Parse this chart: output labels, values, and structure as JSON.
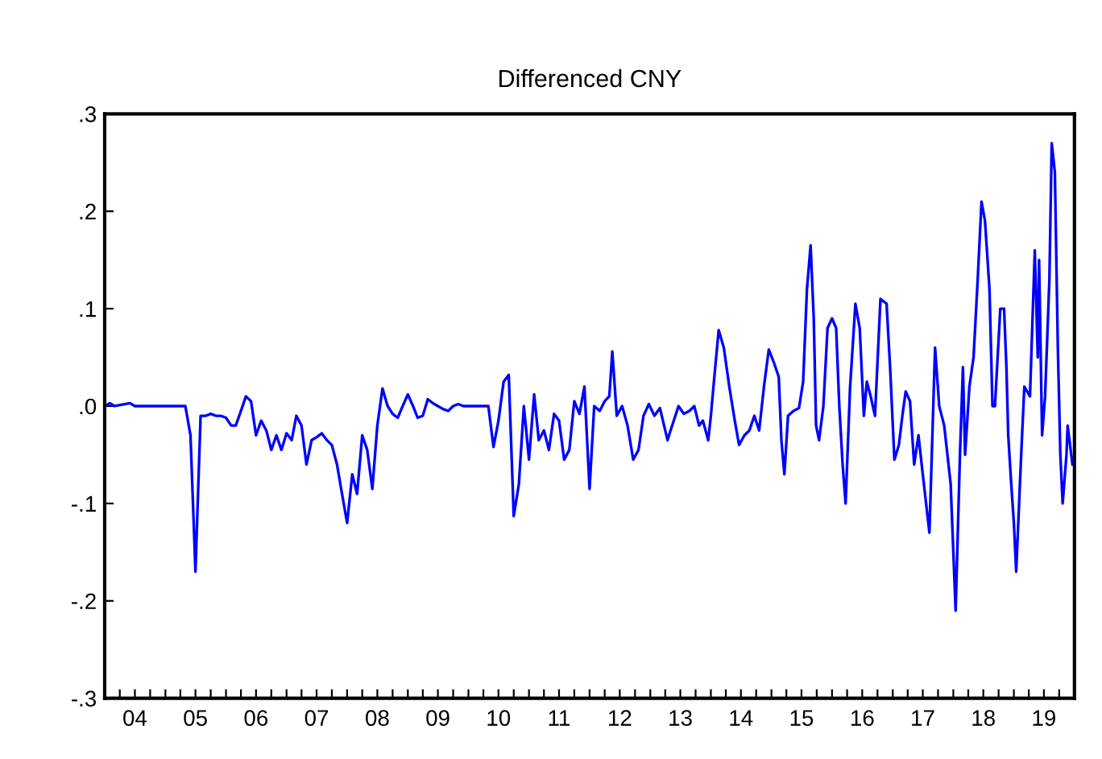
{
  "chart_data": {
    "type": "line",
    "title": "Differenced CNY",
    "x": [
      "2004-01",
      "2004-02",
      "2004-03",
      "2004-06",
      "2004-07",
      "2005-05",
      "2005-06",
      "2005-07",
      "2005-08",
      "2005-09",
      "2005-10",
      "2005-11",
      "2005-12",
      "2006-01",
      "2006-02",
      "2006-03",
      "2006-04",
      "2006-05",
      "2006-06",
      "2006-07",
      "2006-08",
      "2006-09",
      "2006-10",
      "2006-11",
      "2006-12",
      "2007-01",
      "2007-02",
      "2007-03",
      "2007-04",
      "2007-05",
      "2007-06",
      "2007-07",
      "2007-08",
      "2007-09",
      "2007-10",
      "2007-11",
      "2007-12",
      "2008-01",
      "2008-02",
      "2008-03",
      "2008-04",
      "2008-05",
      "2008-06",
      "2008-07",
      "2008-08",
      "2008-09",
      "2008-10",
      "2008-11",
      "2008-12",
      "2009-01",
      "2009-02",
      "2009-03",
      "2009-04",
      "2009-05",
      "2009-06",
      "2009-07",
      "2009-08",
      "2009-09",
      "2009-10",
      "2009-11",
      "2009-12",
      "2010-05",
      "2010-06",
      "2010-07",
      "2010-08",
      "2010-09",
      "2010-10",
      "2010-11",
      "2010-12",
      "2011-01",
      "2011-02",
      "2011-03",
      "2011-04",
      "2011-05",
      "2011-06",
      "2011-07",
      "2011-08",
      "2011-09",
      "2011-10",
      "2011-11",
      "2011-12",
      "2012-01",
      "2012-01-29",
      "2012-03-02",
      "2012-04-01",
      "2012-04-29",
      "2012-05-17",
      "2012-06-13",
      "2012-07-15",
      "2012-08-17",
      "2012-09-20",
      "2012-10-22",
      "2012-11-21",
      "2012-12-23",
      "2013-01-26",
      "2013-02-28",
      "2013-04-15",
      "2013-05-03",
      "2013-06-20",
      "2013-07-22",
      "2013-08-25",
      "2013-09-23",
      "2013-10-22",
      "2013-11-14",
      "2013-12-16",
      "2014-01-01",
      "2014-01-22",
      "2014-02-17",
      "2014-03-20",
      "2014-04-22",
      "2014-05-25",
      "2014-06-20",
      "2014-07-22",
      "2014-08-21",
      "2014-09-20",
      "2014-10-19",
      "2014-11-17",
      "2014-12-16",
      "2015-01-15",
      "2015-02-14",
      "2015-03-02",
      "2015-03-20",
      "2015-04-11",
      "2015-05-14",
      "2015-06-16",
      "2015-07-11",
      "2015-08-03",
      "2015-08-25",
      "2015-09-13",
      "2015-09-27",
      "2015-10-15",
      "2015-11-10",
      "2015-12-05",
      "2016-01-01",
      "2016-01-26",
      "2016-02-14",
      "2016-03-05",
      "2016-03-23",
      "2016-04-19",
      "2016-05-21",
      "2016-06-16",
      "2016-07-11",
      "2016-07-29",
      "2016-08-21",
      "2016-09-16",
      "2016-10-19",
      "2016-11-25",
      "2016-12-16",
      "2017-01-11",
      "2017-02-07",
      "2017-02-28",
      "2017-03-20",
      "2017-04-15",
      "2017-05-10",
      "2017-06-05",
      "2017-07-01",
      "2017-08-10",
      "2017-09-13",
      "2017-10-08",
      "2017-11-07",
      "2017-12-16",
      "2018-01-15",
      "2018-02-10",
      "2018-02-28",
      "2018-03-13",
      "2018-04-08",
      "2018-05-03",
      "2018-05-28",
      "2018-06-20",
      "2018-07-11",
      "2018-08-07",
      "2018-08-25",
      "2018-09-09",
      "2018-10-11",
      "2018-11-03",
      "2018-11-17",
      "2018-11-28",
      "2018-12-16",
      "2019-01-01",
      "2019-01-15",
      "2019-02-14",
      "2019-03-05",
      "2019-04-08",
      "2019-05-07",
      "2019-05-25",
      "2019-06-02",
      "2019-06-20",
      "2019-07-08",
      "2019-08-03",
      "2019-08-17",
      "2019-09-05",
      "2019-09-23",
      "2019-10-08",
      "2019-10-22",
      "2019-11-14",
      "2019-11-21",
      "2019-12-20"
    ],
    "series": [
      {
        "color": "#0000ff",
        "values": [
          0,
          0.003,
          0,
          0.003,
          0,
          0,
          -0.03,
          -0.17,
          -0.01,
          -0.01,
          -0.008,
          -0.01,
          -0.01,
          -0.012,
          -0.02,
          -0.02,
          -0.005,
          0.01,
          0.005,
          -0.03,
          -0.015,
          -0.025,
          -0.045,
          -0.03,
          -0.045,
          -0.028,
          -0.035,
          -0.01,
          -0.02,
          -0.06,
          -0.035,
          -0.032,
          -0.028,
          -0.035,
          -0.04,
          -0.06,
          -0.09,
          -0.12,
          -0.07,
          -0.09,
          -0.03,
          -0.045,
          -0.085,
          -0.02,
          0.018,
          0,
          -0.008,
          -0.012,
          0,
          0.012,
          0,
          -0.012,
          -0.01,
          0.007,
          0.003,
          0,
          -0.003,
          -0.005,
          0,
          0.002,
          0,
          0,
          -0.042,
          -0.015,
          0.025,
          0.032,
          -0.113,
          -0.08,
          0,
          -0.055,
          0.012,
          -0.035,
          -0.025,
          -0.045,
          -0.008,
          -0.015,
          -0.055,
          -0.045,
          0.005,
          -0.008,
          0.02,
          -0.085,
          0,
          -0.005,
          0.005,
          0.01,
          0.056,
          -0.01,
          0,
          -0.02,
          -0.055,
          -0.045,
          -0.01,
          0.002,
          -0.01,
          -0.002,
          -0.035,
          -0.025,
          0,
          -0.008,
          -0.005,
          0,
          -0.02,
          -0.015,
          -0.035,
          -0.01,
          0.03,
          0.078,
          0.06,
          0.02,
          -0.015,
          -0.04,
          -0.03,
          -0.025,
          -0.01,
          -0.025,
          0.02,
          0.058,
          0.045,
          0.03,
          -0.035,
          -0.07,
          -0.01,
          -0.005,
          -0.002,
          0.025,
          0.12,
          0.165,
          0.09,
          -0.02,
          -0.035,
          0,
          0.08,
          0.09,
          0.08,
          0,
          -0.06,
          -0.1,
          0.02,
          0.105,
          0.08,
          -0.01,
          0.025,
          0.01,
          -0.01,
          0.11,
          0.105,
          0.04,
          -0.055,
          -0.04,
          -0.01,
          0.015,
          0.005,
          -0.06,
          -0.03,
          -0.07,
          -0.13,
          0.06,
          0,
          -0.02,
          -0.08,
          -0.21,
          -0.05,
          0.04,
          -0.05,
          0.02,
          0.05,
          0.13,
          0.21,
          0.19,
          0.12,
          0,
          0,
          0.1,
          0.1,
          0.04,
          -0.03,
          -0.08,
          -0.12,
          -0.17,
          -0.05,
          0.02,
          0.01,
          0.16,
          0.05,
          0.15,
          -0.03,
          0.01,
          0.13,
          0.27,
          0.24,
          0.06,
          -0.05,
          -0.1,
          -0.05,
          -0.02,
          -0.06
        ]
      }
    ],
    "xlim": [
      "2004-01",
      "2020-01"
    ],
    "xticks": [
      {
        "value": "2004-01",
        "label": null
      },
      {
        "value": "2004-04",
        "label": null
      },
      {
        "value": "2004-07",
        "label": "04"
      },
      {
        "value": "2004-10",
        "label": null
      },
      {
        "value": "2005-01",
        "label": null
      },
      {
        "value": "2005-04",
        "label": null
      },
      {
        "value": "2005-07",
        "label": "05"
      },
      {
        "value": "2005-10",
        "label": null
      },
      {
        "value": "2006-01",
        "label": null
      },
      {
        "value": "2006-04",
        "label": null
      },
      {
        "value": "2006-07",
        "label": "06"
      },
      {
        "value": "2006-10",
        "label": null
      },
      {
        "value": "2007-01",
        "label": null
      },
      {
        "value": "2007-04",
        "label": null
      },
      {
        "value": "2007-07",
        "label": "07"
      },
      {
        "value": "2007-10",
        "label": null
      },
      {
        "value": "2008-01",
        "label": null
      },
      {
        "value": "2008-04",
        "label": null
      },
      {
        "value": "2008-07",
        "label": "08"
      },
      {
        "value": "2008-10",
        "label": null
      },
      {
        "value": "2009-01",
        "label": null
      },
      {
        "value": "2009-04",
        "label": null
      },
      {
        "value": "2009-07",
        "label": "09"
      },
      {
        "value": "2009-10",
        "label": null
      },
      {
        "value": "2010-01",
        "label": null
      },
      {
        "value": "2010-04",
        "label": null
      },
      {
        "value": "2010-07",
        "label": "10"
      },
      {
        "value": "2010-10",
        "label": null
      },
      {
        "value": "2011-01",
        "label": null
      },
      {
        "value": "2011-04",
        "label": null
      },
      {
        "value": "2011-07",
        "label": "11"
      },
      {
        "value": "2011-10",
        "label": null
      },
      {
        "value": "2012-01",
        "label": null
      },
      {
        "value": "2012-04",
        "label": null
      },
      {
        "value": "2012-07",
        "label": "12"
      },
      {
        "value": "2012-10",
        "label": null
      },
      {
        "value": "2013-01",
        "label": null
      },
      {
        "value": "2013-04",
        "label": null
      },
      {
        "value": "2013-07",
        "label": "13"
      },
      {
        "value": "2013-10",
        "label": null
      },
      {
        "value": "2014-01",
        "label": null
      },
      {
        "value": "2014-04",
        "label": null
      },
      {
        "value": "2014-07",
        "label": "14"
      },
      {
        "value": "2014-10",
        "label": null
      },
      {
        "value": "2015-01",
        "label": null
      },
      {
        "value": "2015-04",
        "label": null
      },
      {
        "value": "2015-07",
        "label": "15"
      },
      {
        "value": "2015-10",
        "label": null
      },
      {
        "value": "2016-01",
        "label": null
      },
      {
        "value": "2016-04",
        "label": null
      },
      {
        "value": "2016-07",
        "label": "16"
      },
      {
        "value": "2016-10",
        "label": null
      },
      {
        "value": "2017-01",
        "label": null
      },
      {
        "value": "2017-04",
        "label": null
      },
      {
        "value": "2017-07",
        "label": "17"
      },
      {
        "value": "2017-10",
        "label": null
      },
      {
        "value": "2018-01",
        "label": null
      },
      {
        "value": "2018-04",
        "label": null
      },
      {
        "value": "2018-07",
        "label": "18"
      },
      {
        "value": "2018-10",
        "label": null
      },
      {
        "value": "2019-01",
        "label": null
      },
      {
        "value": "2019-04",
        "label": null
      },
      {
        "value": "2019-07",
        "label": "19"
      },
      {
        "value": "2019-10",
        "label": null
      },
      {
        "value": "2020-01",
        "label": null
      }
    ],
    "ylim": [
      -0.3,
      0.3
    ],
    "yticks": [
      {
        "value": -0.3,
        "label": "-.3"
      },
      {
        "value": -0.2,
        "label": "-.2"
      },
      {
        "value": -0.1,
        "label": "-.1"
      },
      {
        "value": 0,
        "label": ".0"
      },
      {
        "value": 0.1,
        "label": ".1"
      },
      {
        "value": 0.2,
        "label": ".2"
      },
      {
        "value": 0.3,
        "label": ".3"
      }
    ],
    "grid": false,
    "legend": false,
    "marker": "none",
    "line_style": "solid"
  }
}
